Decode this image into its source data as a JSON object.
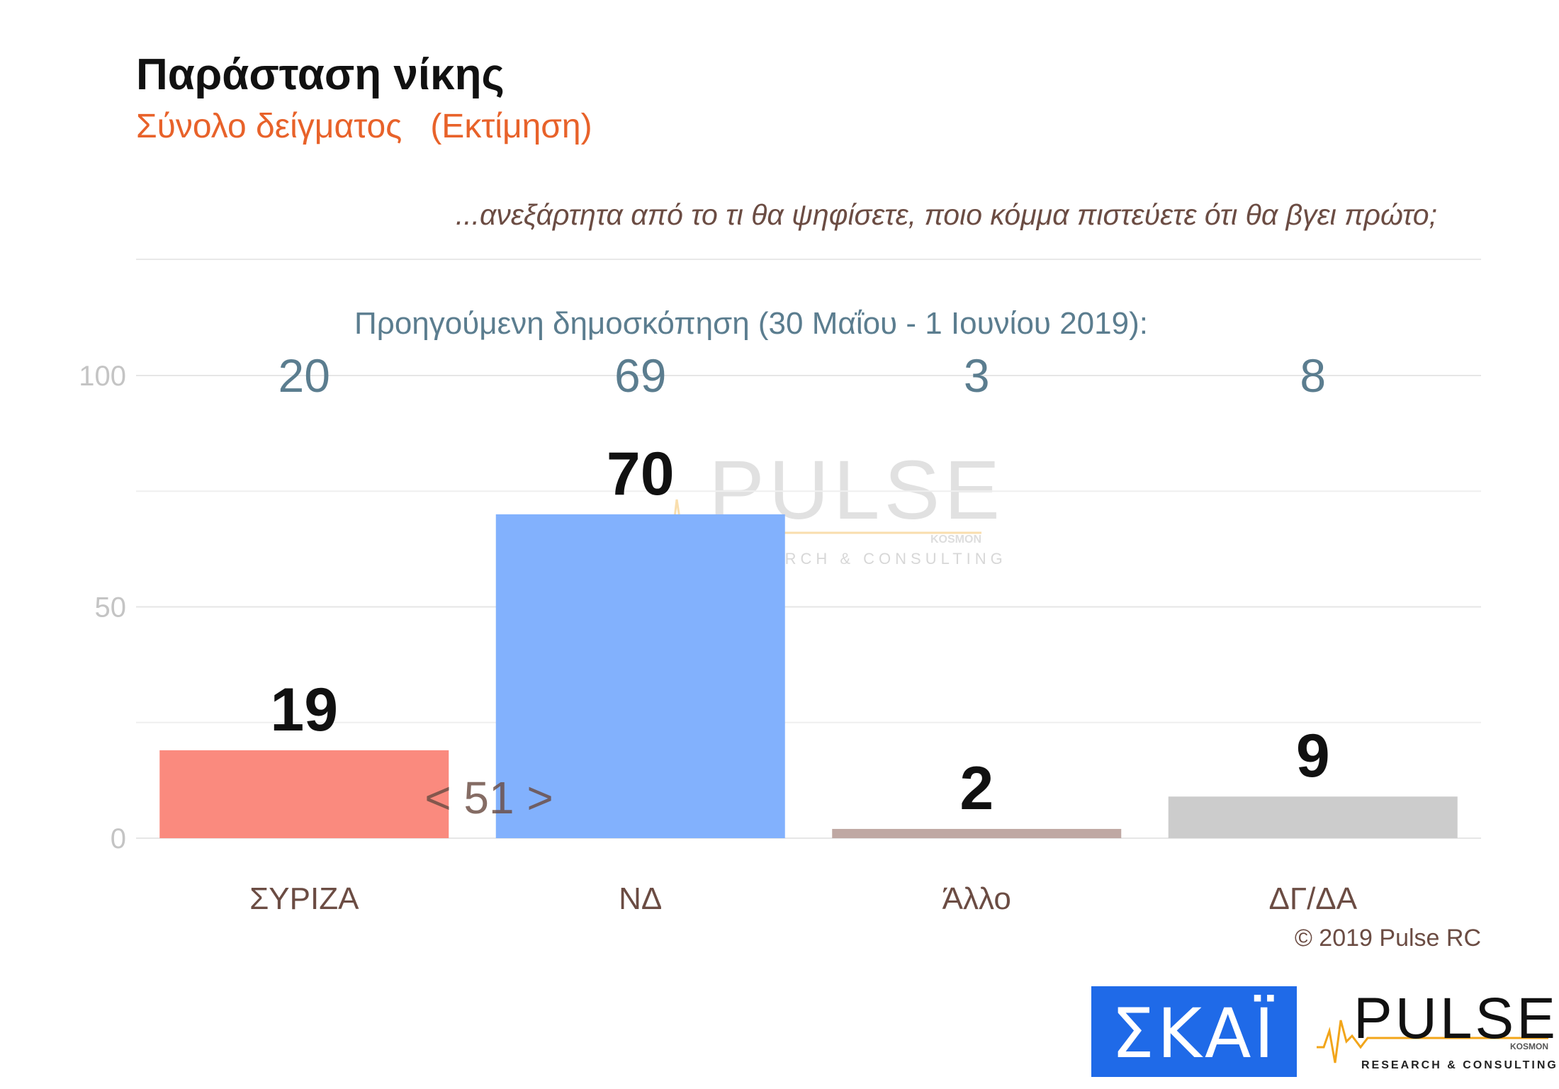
{
  "chart_data": {
    "type": "bar",
    "title": "Παράσταση νίκης",
    "subtitle": "Σύνολο δείγματος   (Εκτίμηση)",
    "question": "...ανεξάρτητα από το τι θα ψηφίσετε, ποιο κόμμα πιστεύετε ότι θα βγει πρώτο;",
    "categories": [
      "ΣΥΡΙΖΑ",
      "ΝΔ",
      "Άλλο",
      "ΔΓ/ΔΑ"
    ],
    "values": [
      19,
      70,
      2,
      9
    ],
    "data_labels": [
      "19",
      "70",
      "2",
      "9"
    ],
    "colors": [
      "#fa8a7e",
      "#82b1fd",
      "#bfa8a3",
      "#cccccc"
    ],
    "previous": {
      "label": "Προηγούμενη δημοσκόπηση (30 Μαΐου - 1 Ιουνίου 2019):",
      "values": [
        "20",
        "69",
        "3",
        "8"
      ]
    },
    "difference_label": "< 51 >",
    "ylim": [
      0,
      100
    ],
    "yticks": [
      0,
      50,
      100
    ],
    "ytick_labels": [
      "0",
      "50",
      "100"
    ],
    "minor_gridlines": [
      25,
      75
    ],
    "grid": true,
    "xlabel": "",
    "ylabel": ""
  },
  "copyright": "© 2019 Pulse RC",
  "watermark": {
    "name": "PULSE",
    "tagline": "RESEARCH & CONSULTING",
    "partner": "KOSMON"
  },
  "logos": {
    "skai": {
      "text": "ΣΚΑΪ",
      "color": "#1f6ae8"
    },
    "pulse": {
      "name": "PULSE",
      "tagline": "RESEARCH & CONSULTING",
      "partner": "KOSMON",
      "accent": "#f2a51a"
    }
  }
}
